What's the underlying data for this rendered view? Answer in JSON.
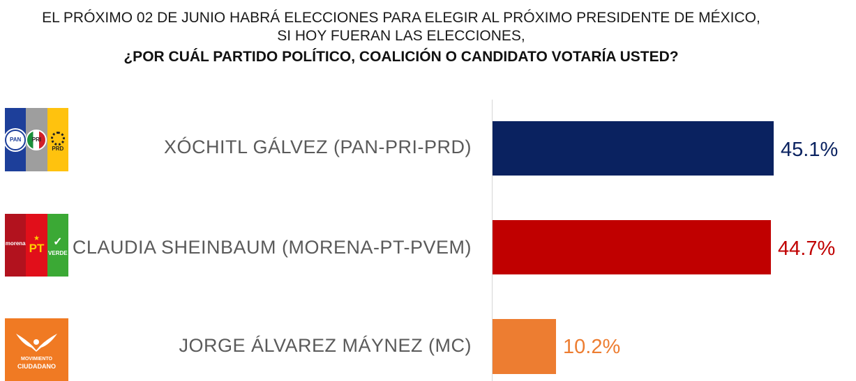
{
  "title": {
    "line1": "EL PRÓXIMO 02 DE JUNIO HABRÁ ELECCIONES PARA ELEGIR AL PRÓXIMO PRESIDENTE DE MÉXICO,",
    "line2": "SI HOY FUERAN LAS ELECCIONES,",
    "line3": "¿POR CUÁL PARTIDO POLÍTICO, COALICIÓN O CANDIDATO VOTARÍA USTED?"
  },
  "logos": {
    "pan": "PAN",
    "pri": "PRI",
    "prd": "PRD",
    "morena": "morena",
    "pt": "PT",
    "verde": "VERDE",
    "mc_line1": "MOVIMIENTO",
    "mc_line2": "CIUDADANO"
  },
  "chart_data": {
    "type": "bar",
    "orientation": "horizontal",
    "categories": [
      "XÓCHITL GÁLVEZ (PAN-PRI-PRD)",
      "CLAUDIA SHEINBAUM (MORENA-PT-PVEM)",
      "JORGE ÁLVAREZ MÁYNEZ (MC)"
    ],
    "values": [
      45.1,
      44.7,
      10.2
    ],
    "value_labels": [
      "45.1%",
      "44.7%",
      "10.2%"
    ],
    "colors": [
      "#0A2260",
      "#C00000",
      "#ED7D31"
    ],
    "xlim": [
      0,
      50
    ],
    "grid": false,
    "legend": "none"
  }
}
